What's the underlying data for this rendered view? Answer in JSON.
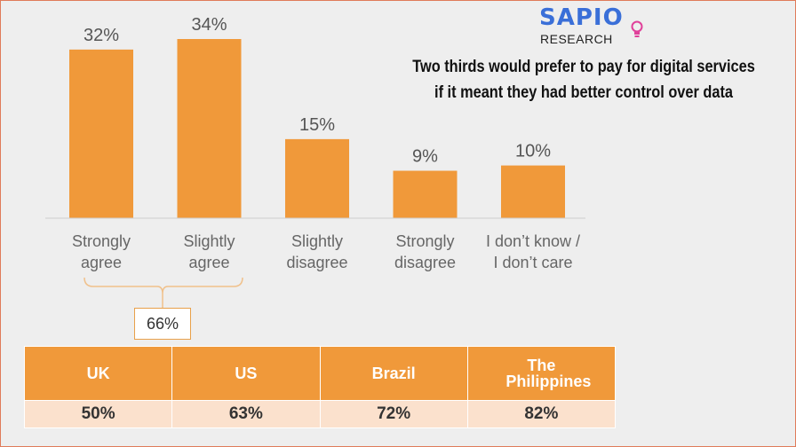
{
  "brand": {
    "name": "SAPIO",
    "sub": "RESEARCH"
  },
  "headline": {
    "line1": "Two thirds would prefer to pay for digital services",
    "line2": "if it meant they had better control over data"
  },
  "chart_data": {
    "type": "bar",
    "categories": [
      [
        "Strongly",
        "agree"
      ],
      [
        "Slightly",
        "agree"
      ],
      [
        "Slightly",
        "disagree"
      ],
      [
        "Strongly",
        "disagree"
      ],
      [
        "I don’t know /",
        "I don’t care"
      ]
    ],
    "values": [
      32,
      34,
      15,
      9,
      10
    ],
    "value_labels": [
      "32%",
      "34%",
      "15%",
      "9%",
      "10%"
    ],
    "ylim": [
      0,
      34
    ],
    "grid": false,
    "bar_color": "#f0993a",
    "bracket_total": "66%"
  },
  "table": {
    "headers": [
      "UK",
      "US",
      "Brazil",
      "The Philippines"
    ],
    "values": [
      "50%",
      "63%",
      "72%",
      "82%"
    ]
  }
}
